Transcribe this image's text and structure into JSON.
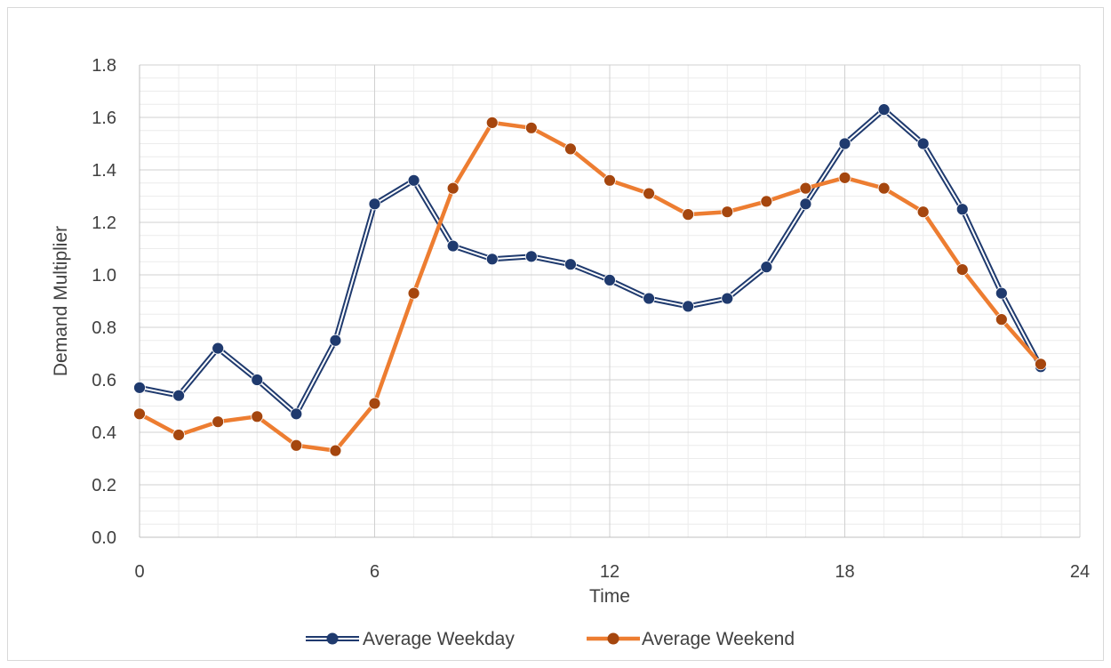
{
  "chart_data": {
    "type": "line",
    "title": "",
    "xlabel": "Time",
    "ylabel": "Demand Multiplier",
    "xlim": [
      0,
      24
    ],
    "ylim": [
      0,
      1.8
    ],
    "xticks": [
      "0",
      "6",
      "12",
      "18",
      "24"
    ],
    "yticks": [
      "0.0",
      "0.2",
      "0.4",
      "0.6",
      "0.8",
      "1.0",
      "1.2",
      "1.4",
      "1.6",
      "1.8"
    ],
    "grid": true,
    "legend_position": "bottom",
    "x": [
      0,
      1,
      2,
      3,
      4,
      5,
      6,
      7,
      8,
      9,
      10,
      11,
      12,
      13,
      14,
      15,
      16,
      17,
      18,
      19,
      20,
      21,
      22,
      23
    ],
    "series": [
      {
        "name": "Average Weekday",
        "color": "#1f3a6e",
        "values": [
          0.57,
          0.54,
          0.72,
          0.6,
          0.47,
          0.75,
          1.27,
          1.36,
          1.11,
          1.06,
          1.07,
          1.04,
          0.98,
          0.91,
          0.88,
          0.91,
          1.03,
          1.27,
          1.5,
          1.63,
          1.5,
          1.25,
          0.93,
          0.65
        ]
      },
      {
        "name": "Average Weekend",
        "color": "#ed7d31",
        "marker_color": "#a5460e",
        "values": [
          0.47,
          0.39,
          0.44,
          0.46,
          0.35,
          0.33,
          0.51,
          0.93,
          1.33,
          1.58,
          1.56,
          1.48,
          1.36,
          1.31,
          1.23,
          1.24,
          1.28,
          1.33,
          1.37,
          1.33,
          1.24,
          1.02,
          0.83,
          0.66
        ]
      }
    ]
  }
}
